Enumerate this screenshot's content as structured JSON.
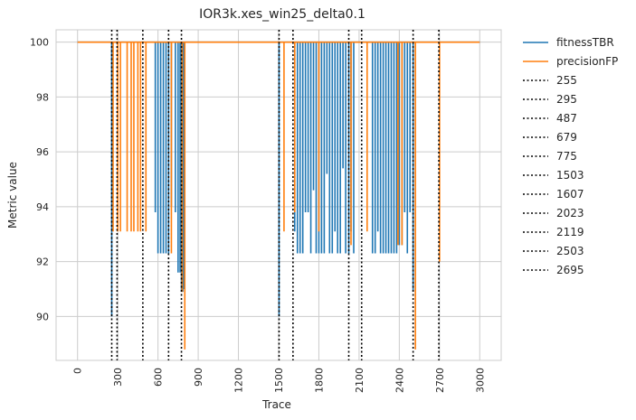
{
  "chart_data": {
    "type": "line",
    "title": "IOR3k.xes_win25_delta0.1",
    "xlabel": "Trace",
    "ylabel": "Metric value",
    "xlim": [
      -160,
      3160
    ],
    "ylim": [
      88.4,
      100.45
    ],
    "x_ticks": [
      0,
      300,
      600,
      900,
      1200,
      1500,
      1800,
      2100,
      2400,
      2700,
      3000
    ],
    "y_ticks": [
      90,
      92,
      94,
      96,
      98,
      100
    ],
    "grid": true,
    "legend_position": "outside-right",
    "series": [
      {
        "name": "fitnessTBR",
        "color": "#1f77b4",
        "baseline": 100,
        "dips": [
          [
            255,
            90.0
          ],
          [
            295,
            100.0
          ],
          [
            580,
            93.8
          ],
          [
            600,
            92.3
          ],
          [
            620,
            92.3
          ],
          [
            640,
            92.3
          ],
          [
            660,
            92.3
          ],
          [
            679,
            92.3
          ],
          [
            700,
            94.0
          ],
          [
            730,
            93.8
          ],
          [
            750,
            91.6
          ],
          [
            765,
            91.6
          ],
          [
            775,
            90.9
          ],
          [
            785,
            90.9
          ],
          [
            795,
            91.0
          ],
          [
            1503,
            90.0
          ],
          [
            1620,
            93.1
          ],
          [
            1640,
            92.3
          ],
          [
            1660,
            92.3
          ],
          [
            1680,
            92.3
          ],
          [
            1700,
            93.8
          ],
          [
            1720,
            93.8
          ],
          [
            1740,
            92.3
          ],
          [
            1760,
            94.6
          ],
          [
            1780,
            92.3
          ],
          [
            1800,
            92.3
          ],
          [
            1820,
            92.3
          ],
          [
            1840,
            92.3
          ],
          [
            1860,
            95.2
          ],
          [
            1880,
            92.3
          ],
          [
            1900,
            92.3
          ],
          [
            1920,
            93.1
          ],
          [
            1940,
            92.3
          ],
          [
            1960,
            92.3
          ],
          [
            1980,
            95.4
          ],
          [
            2000,
            92.3
          ],
          [
            2023,
            92.3
          ],
          [
            2040,
            93.1
          ],
          [
            2060,
            92.3
          ],
          [
            2200,
            92.3
          ],
          [
            2220,
            92.3
          ],
          [
            2240,
            93.1
          ],
          [
            2260,
            92.3
          ],
          [
            2280,
            92.3
          ],
          [
            2300,
            92.3
          ],
          [
            2320,
            92.3
          ],
          [
            2340,
            92.3
          ],
          [
            2360,
            92.3
          ],
          [
            2380,
            92.3
          ],
          [
            2400,
            92.6
          ],
          [
            2420,
            92.6
          ],
          [
            2440,
            93.8
          ],
          [
            2460,
            92.3
          ],
          [
            2480,
            93.8
          ],
          [
            2503,
            90.9
          ]
        ]
      },
      {
        "name": "precisionFP",
        "color": "#ff7f0e",
        "baseline": 100,
        "dips": [
          [
            265,
            93.1
          ],
          [
            300,
            93.1
          ],
          [
            320,
            93.1
          ],
          [
            370,
            93.1
          ],
          [
            400,
            93.1
          ],
          [
            420,
            93.1
          ],
          [
            450,
            93.1
          ],
          [
            470,
            93.1
          ],
          [
            510,
            93.1
          ],
          [
            700,
            92.3
          ],
          [
            780,
            90.9
          ],
          [
            800,
            88.8
          ],
          [
            1540,
            93.1
          ],
          [
            1620,
            93.8
          ],
          [
            1800,
            93.1
          ],
          [
            2040,
            92.6
          ],
          [
            2160,
            93.1
          ],
          [
            2390,
            92.6
          ],
          [
            2420,
            92.6
          ],
          [
            2520,
            88.8
          ],
          [
            2700,
            92.0
          ]
        ]
      }
    ],
    "vlines": [
      {
        "name": "255",
        "x": 255
      },
      {
        "name": "295",
        "x": 295
      },
      {
        "name": "487",
        "x": 487
      },
      {
        "name": "679",
        "x": 679
      },
      {
        "name": "775",
        "x": 775
      },
      {
        "name": "1503",
        "x": 1503
      },
      {
        "name": "1607",
        "x": 1607
      },
      {
        "name": "2023",
        "x": 2023
      },
      {
        "name": "2119",
        "x": 2119
      },
      {
        "name": "2503",
        "x": 2503
      },
      {
        "name": "2695",
        "x": 2695
      }
    ],
    "x_range": [
      0,
      3000
    ]
  }
}
